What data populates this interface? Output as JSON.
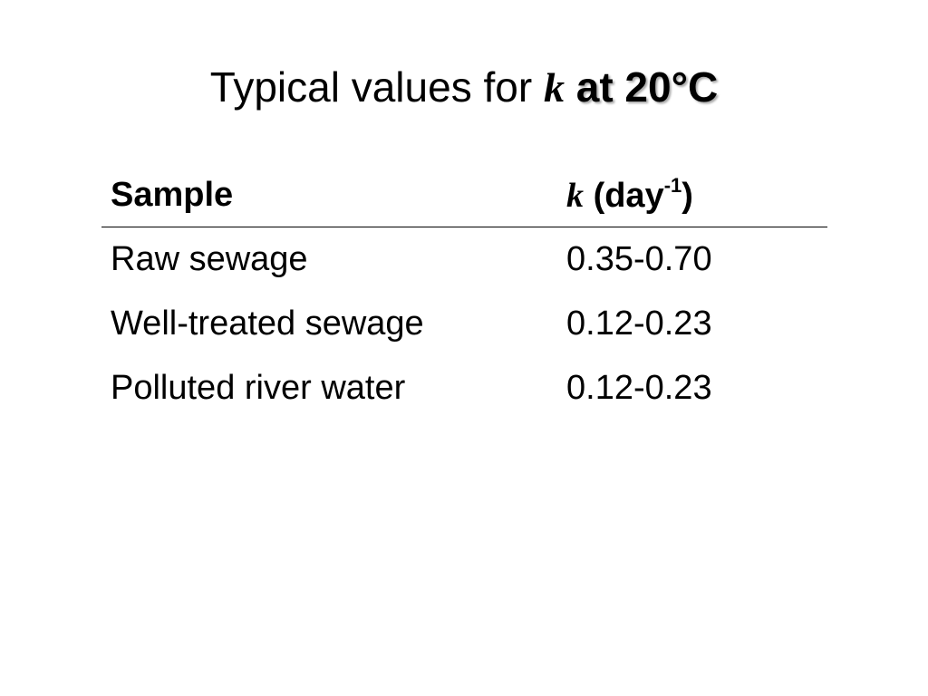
{
  "title": {
    "prefix": "Typical values for",
    "symbol": "k",
    "suffix": "at 20°C"
  },
  "table": {
    "header": {
      "sample": "Sample",
      "symbol": "k",
      "unit_open": "(day",
      "exponent": "-1",
      "unit_close": ")"
    },
    "rows": [
      [
        "Raw sewage",
        "0.35-0.70"
      ],
      [
        "Well-treated sewage",
        "0.12-0.23"
      ],
      [
        "Polluted river water",
        "0.12-0.23"
      ]
    ]
  }
}
